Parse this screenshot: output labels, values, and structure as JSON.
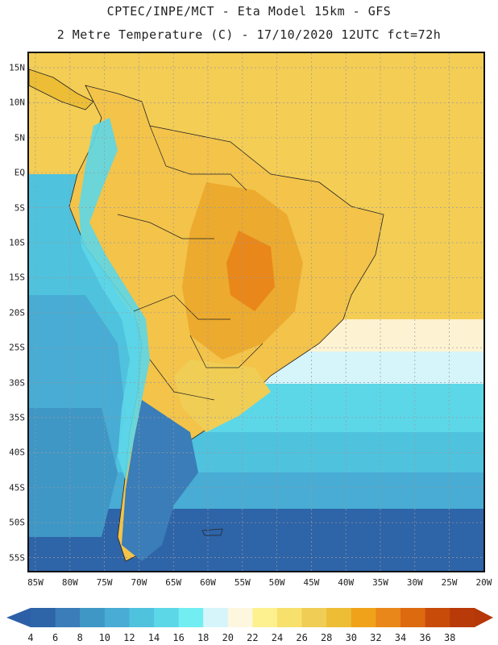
{
  "header": {
    "title_line1": "CPTEC/INPE/MCT -  Eta Model 15km - GFS",
    "title_line2": "2 Metre Temperature (C) - 17/10/2020 12UTC fct=72h"
  },
  "map": {
    "lat_labels": [
      "15N",
      "10N",
      "5N",
      "EQ",
      "5S",
      "10S",
      "15S",
      "20S",
      "25S",
      "30S",
      "35S",
      "40S",
      "45S",
      "50S",
      "55S"
    ],
    "lon_labels": [
      "85W",
      "80W",
      "75W",
      "70W",
      "65W",
      "60W",
      "55W",
      "50W",
      "45W",
      "40W",
      "35W",
      "30W",
      "25W",
      "20W"
    ],
    "region_labels": []
  },
  "colorbar": {
    "ticks": [
      "4",
      "6",
      "8",
      "10",
      "12",
      "14",
      "16",
      "18",
      "20",
      "22",
      "24",
      "26",
      "28",
      "30",
      "32",
      "34",
      "36",
      "38"
    ],
    "colors": [
      "#2e64a8",
      "#3a7db8",
      "#3f97c6",
      "#48acd4",
      "#4fc2de",
      "#5cd7e8",
      "#72eef2",
      "#d5f5fb",
      "#fef7e0",
      "#fdf08e",
      "#f7e06c",
      "#f0cd55",
      "#ecbd35",
      "#f0a21b",
      "#e9871a",
      "#de6a10",
      "#c84b0a",
      "#b83a08"
    ],
    "low_cap_color": "#2d5fa6",
    "high_cap_color": "#b63708"
  }
}
